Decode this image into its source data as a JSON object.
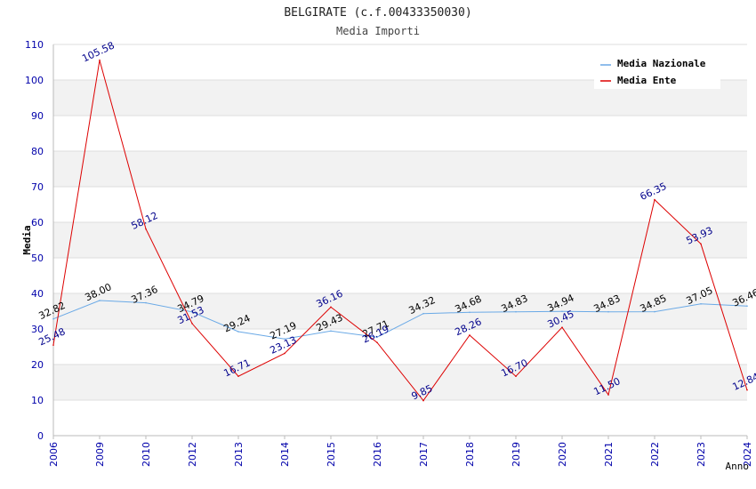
{
  "chart_data": {
    "type": "line",
    "title": "BELGIRATE (c.f.00433350030)",
    "subtitle": "Media Importi",
    "xlabel": "Anno",
    "ylabel": "Media",
    "ylim": [
      0,
      110
    ],
    "yticks": [
      0,
      10,
      20,
      30,
      40,
      50,
      60,
      70,
      80,
      90,
      100,
      110
    ],
    "categories": [
      "2006",
      "2009",
      "2010",
      "2012",
      "2013",
      "2014",
      "2015",
      "2016",
      "2017",
      "2018",
      "2019",
      "2020",
      "2021",
      "2022",
      "2023",
      "2024"
    ],
    "grid": true,
    "legend_position": "top-right",
    "series": [
      {
        "name": "Media Nazionale",
        "color": "#6aa9e6",
        "label_color": "#000000",
        "values": [
          32.82,
          38.0,
          37.36,
          34.79,
          29.24,
          27.19,
          29.43,
          27.71,
          34.32,
          34.68,
          34.83,
          34.94,
          34.83,
          34.85,
          37.05,
          36.46
        ],
        "labels": [
          "32.82",
          "38.00",
          "37.36",
          "34.79",
          "29.24",
          "27.19",
          "29.43",
          "27.71",
          "34.32",
          "34.68",
          "34.83",
          "34.94",
          "34.83",
          "34.85",
          "37.05",
          "36.46"
        ]
      },
      {
        "name": "Media Ente",
        "color": "#dd0000",
        "label_color": "#00008b",
        "values": [
          25.48,
          105.58,
          58.12,
          31.53,
          16.71,
          23.13,
          36.16,
          26.19,
          9.85,
          28.26,
          16.7,
          30.45,
          11.5,
          66.35,
          53.93,
          12.84
        ],
        "labels": [
          "25.48",
          "105.58",
          "58.12",
          "31.53",
          "16.71",
          "23.13",
          "36.16",
          "26.19",
          "9.85",
          "28.26",
          "16.70",
          "30.45",
          "11.50",
          "66.35",
          "53.93",
          "12.84"
        ]
      }
    ]
  }
}
